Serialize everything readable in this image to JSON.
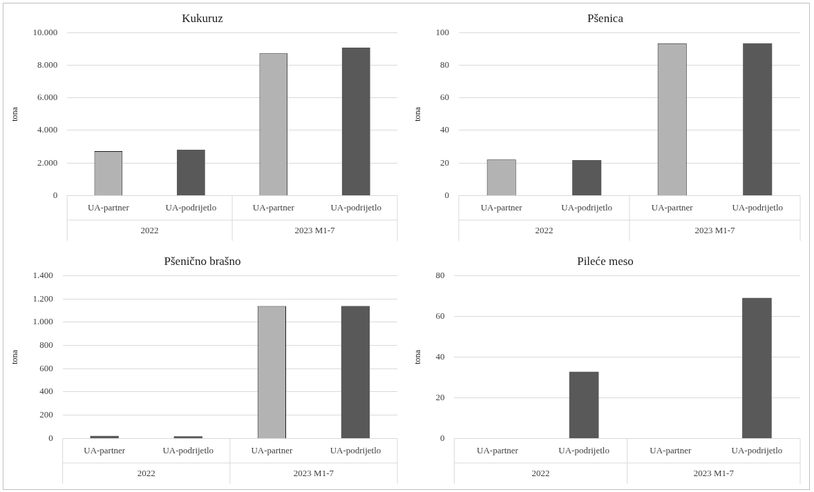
{
  "chart_data": [
    {
      "type": "bar",
      "title": "Kukuruz",
      "ylabel": "tona",
      "categories": [
        "UA-partner",
        "UA-podrijetlo",
        "UA-partner",
        "UA-podrijetlo"
      ],
      "values": [
        2730,
        2810,
        8730,
        9080
      ],
      "colors": [
        "#b3b3b3",
        "#595959",
        "#b3b3b3",
        "#595959"
      ],
      "ylim": [
        0,
        10000
      ],
      "yticks": [
        0,
        {
          "value": 2000,
          "label": "2.000"
        },
        {
          "value": 4000,
          "label": "4.000"
        },
        {
          "value": 6000,
          "label": "6.000"
        },
        {
          "value": 8000,
          "label": "8.000"
        },
        {
          "value": 10000,
          "label": "10.000"
        }
      ],
      "grid": "y",
      "legend": false,
      "annotations": [
        "2022",
        "2023 M1-7"
      ]
    },
    {
      "type": "bar",
      "title": "Pšenica",
      "ylabel": "tona",
      "categories": [
        "UA-partner",
        "UA-podrijetlo",
        "UA-partner",
        "UA-podrijetlo"
      ],
      "values": [
        22.1,
        21.8,
        93.5,
        93.5
      ],
      "colors": [
        "#b3b3b3",
        "#595959",
        "#b3b3b3",
        "#595959"
      ],
      "ylim": [
        0,
        100
      ],
      "yticks": [
        0,
        20,
        40,
        60,
        80,
        100
      ],
      "grid": "y",
      "legend": false,
      "annotations": [
        "2022",
        "2023 M1-7"
      ]
    },
    {
      "type": "bar",
      "title": "Pšenično brašno",
      "ylabel": "tona",
      "categories": [
        "UA-partner",
        "UA-podrijetlo",
        "UA-partner",
        "UA-podrijetlo"
      ],
      "values": [
        22,
        18,
        1138,
        1138
      ],
      "colors": [
        "#595959",
        "#595959",
        "#b3b3b3",
        "#595959"
      ],
      "ylim": [
        0,
        1400
      ],
      "yticks": [
        0,
        200,
        400,
        600,
        800,
        {
          "value": 1000,
          "label": "1.000"
        },
        {
          "value": 1200,
          "label": "1.200"
        },
        {
          "value": 1400,
          "label": "1.400"
        }
      ],
      "grid": "y",
      "legend": false,
      "annotations": [
        "2022",
        "2023 M1-7"
      ]
    },
    {
      "type": "bar",
      "title": "Pileće meso",
      "ylabel": "tona",
      "categories": [
        "UA-partner",
        "UA-podrijetlo",
        "UA-partner",
        "UA-podrijetlo"
      ],
      "values": [
        0,
        32.8,
        0,
        69
      ],
      "colors": [
        "#b3b3b3",
        "#595959",
        "#b3b3b3",
        "#595959"
      ],
      "ylim": [
        0,
        80
      ],
      "yticks": [
        0,
        20,
        40,
        60,
        80
      ],
      "grid": "y",
      "legend": false,
      "annotations": [
        "2022",
        "2023 M1-7"
      ]
    }
  ]
}
